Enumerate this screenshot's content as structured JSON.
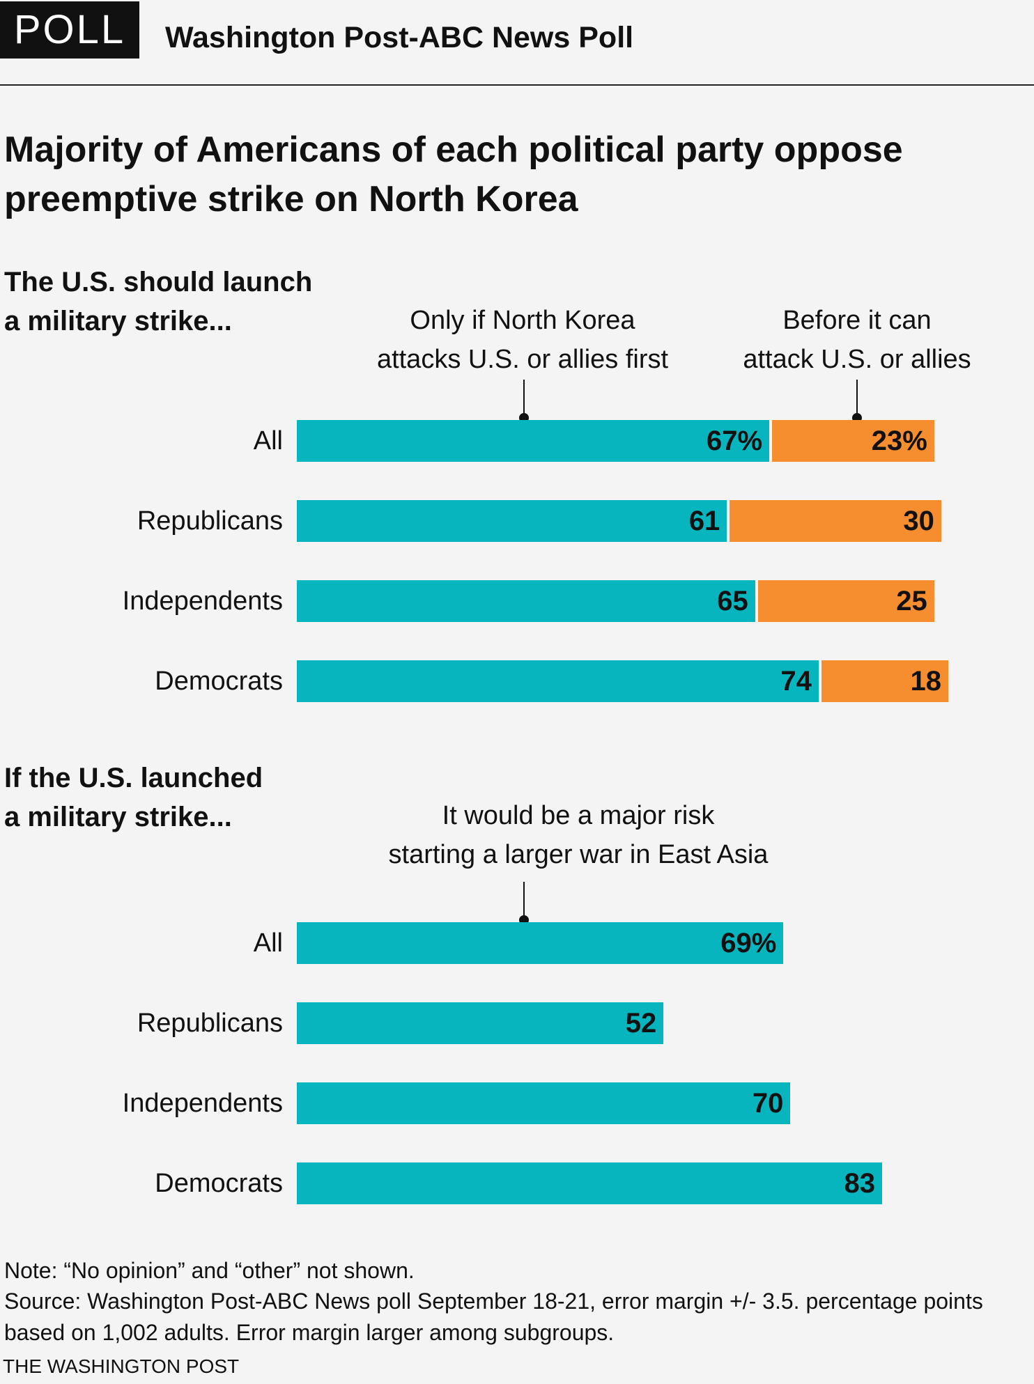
{
  "header": {
    "badge": "POLL",
    "poll_name": "Washington Post-ABC News Poll"
  },
  "headline": "Majority of Americans of each political party oppose preemptive strike on North Korea",
  "colors": {
    "teal": "#06b5bd",
    "orange": "#f68d2e"
  },
  "chart_data": [
    {
      "type": "bar",
      "orientation": "horizontal",
      "stacked": true,
      "title_line1": "The U.S. should launch",
      "title_line2": "a military strike...",
      "categories": [
        "All",
        "Republicans",
        "Independents",
        "Democrats"
      ],
      "series": [
        {
          "name_line1": "Only if North Korea",
          "name_line2": "attacks U.S. or allies first",
          "color": "teal",
          "values": [
            67,
            61,
            65,
            74
          ],
          "labels": [
            "67%",
            "61",
            "65",
            "74"
          ]
        },
        {
          "name_line1": "Before it can",
          "name_line2": "attack U.S. or allies",
          "color": "orange",
          "values": [
            23,
            30,
            25,
            18
          ],
          "labels": [
            "23%",
            "30",
            "25",
            "18"
          ]
        }
      ],
      "xlim": [
        0,
        100
      ],
      "grid": false,
      "legend": "above bars"
    },
    {
      "type": "bar",
      "orientation": "horizontal",
      "stacked": false,
      "title_line1": "If the U.S. launched",
      "title_line2": "a military strike...",
      "categories": [
        "All",
        "Republicans",
        "Independents",
        "Democrats"
      ],
      "series": [
        {
          "name_line1": "It would be a major risk",
          "name_line2": "starting a larger war in East Asia",
          "color": "teal",
          "values": [
            69,
            52,
            70,
            83
          ],
          "labels": [
            "69%",
            "52",
            "70",
            "83"
          ]
        }
      ],
      "xlim": [
        0,
        100
      ],
      "grid": false,
      "legend": "above bars"
    }
  ],
  "footer": {
    "note": "Note: “No opinion” and “other” not shown.",
    "source": "Source: Washington Post-ABC News poll September 18-21, error margin +/- 3.5. percentage points based on 1,002 adults. Error margin larger among subgroups.",
    "credit": "THE WASHINGTON POST"
  }
}
